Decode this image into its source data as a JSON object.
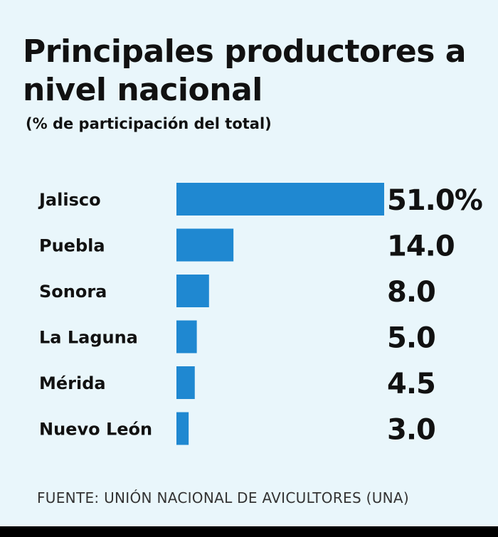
{
  "title": "Principales productores a nivel nacional",
  "subtitle": "(% de participación del total)",
  "source": "FUENTE: UNIÓN NACIONAL DE AVICULTORES (UNA)",
  "colors": {
    "background": "#e9f6fb",
    "bar": "#1f88d1",
    "text": "#111111"
  },
  "chart_data": {
    "type": "bar",
    "orientation": "horizontal",
    "categories": [
      "Jalisco",
      "Puebla",
      "Sonora",
      "La Laguna",
      "Mérida",
      "Nuevo León"
    ],
    "values": [
      51.0,
      14.0,
      8.0,
      5.0,
      4.5,
      3.0
    ],
    "value_labels": [
      "51.0%",
      "14.0",
      "8.0",
      "5.0",
      "4.5",
      "3.0"
    ],
    "xlim": [
      0,
      51
    ],
    "grid": false,
    "legend": "none"
  }
}
